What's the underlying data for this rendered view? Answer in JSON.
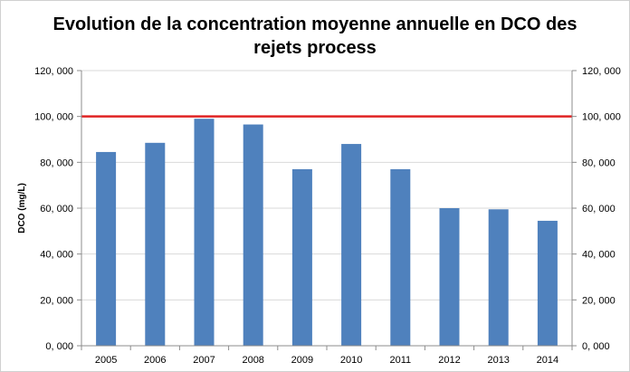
{
  "chart_data": {
    "type": "bar",
    "title_lines": [
      "Evolution de la concentration moyenne annuelle en DCO des",
      "rejets process"
    ],
    "ylabel": "DCO (mg/L)",
    "xlabel": "",
    "categories": [
      "2005",
      "2006",
      "2007",
      "2008",
      "2009",
      "2010",
      "2011",
      "2012",
      "2013",
      "2014"
    ],
    "values": [
      84.5,
      88.5,
      99.0,
      96.5,
      77.0,
      88.0,
      77.0,
      60.0,
      59.5,
      54.5
    ],
    "ylim": [
      0,
      120
    ],
    "y_ticks": [
      0,
      20,
      40,
      60,
      80,
      100,
      120
    ],
    "y_tick_labels": [
      "0, 000",
      "20, 000",
      "40, 000",
      "60, 000",
      "80, 000",
      "100, 000",
      "120, 000"
    ],
    "secondary_y_axis": true,
    "reference_line": {
      "value": 100,
      "color": "#e02424"
    },
    "bar_color": "#4f81bd",
    "grid": true,
    "legend": "none"
  }
}
